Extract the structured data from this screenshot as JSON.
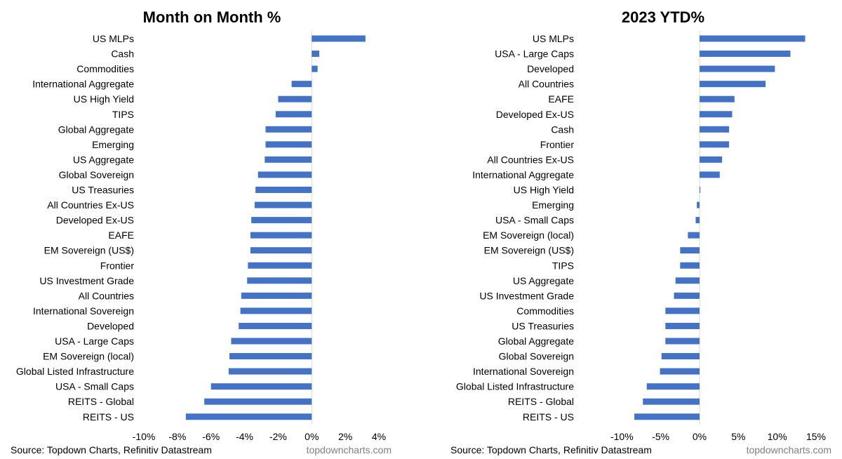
{
  "chart_data": [
    {
      "type": "bar",
      "orientation": "horizontal",
      "title": "Month on Month %",
      "xlabel": "",
      "ylabel": "",
      "xlim": [
        -10,
        4
      ],
      "x_ticks": [
        "-10%",
        "-8%",
        "-6%",
        "-4%",
        "-2%",
        "0%",
        "2%",
        "4%"
      ],
      "grid": false,
      "bar_color": "#4472C4",
      "categories": [
        "US MLPs",
        "Cash",
        "Commodities",
        "International Aggregate",
        "US High Yield",
        "TIPS",
        "Global Aggregate",
        "Emerging",
        "US Aggregate",
        "Global Sovereign",
        "US Treasuries",
        "All Countries Ex-US",
        "Developed Ex-US",
        "EAFE",
        "EM Sovereign (US$)",
        "Frontier",
        "US Investment Grade",
        "All Countries",
        "International Sovereign",
        "Developed",
        "USA - Large Caps",
        "EM Sovereign (local)",
        "Global Listed Infrastructure",
        "USA - Small Caps",
        "REITS - Global",
        "REITS - US"
      ],
      "values": [
        3.2,
        0.45,
        0.35,
        -1.2,
        -2.0,
        -2.15,
        -2.75,
        -2.75,
        -2.8,
        -3.2,
        -3.35,
        -3.4,
        -3.6,
        -3.65,
        -3.65,
        -3.8,
        -3.85,
        -4.2,
        -4.25,
        -4.35,
        -4.8,
        -4.9,
        -4.95,
        -6.0,
        -6.4,
        -7.5
      ]
    },
    {
      "type": "bar",
      "orientation": "horizontal",
      "title": "2023 YTD%",
      "xlabel": "",
      "ylabel": "",
      "xlim": [
        -15,
        15
      ],
      "x_ticks": [
        "-10%",
        "-5%",
        "0%",
        "5%",
        "10%",
        "15%"
      ],
      "grid": false,
      "bar_color": "#4472C4",
      "categories": [
        "US MLPs",
        "USA - Large Caps",
        "Developed",
        "All Countries",
        "EAFE",
        "Developed Ex-US",
        "Cash",
        "Frontier",
        "All Countries Ex-US",
        "International Aggregate",
        "US High Yield",
        "Emerging",
        "USA - Small Caps",
        "EM Sovereign (local)",
        "EM Sovereign (US$)",
        "TIPS",
        "US Aggregate",
        "US Investment Grade",
        "Commodities",
        "US Treasuries",
        "Global Aggregate",
        "Global Sovereign",
        "International Sovereign",
        "Global Listed Infrastructure",
        "REITS - Global",
        "REITS - US"
      ],
      "values": [
        13.6,
        11.7,
        9.7,
        8.5,
        4.5,
        4.2,
        3.8,
        3.8,
        2.9,
        2.6,
        0.1,
        -0.35,
        -0.5,
        -1.5,
        -2.5,
        -2.5,
        -3.1,
        -3.3,
        -4.4,
        -4.4,
        -4.4,
        -4.9,
        -5.1,
        -6.8,
        -7.3,
        -8.4
      ]
    }
  ],
  "footer": {
    "source_left": "Source: Topdown Charts, Refinitiv Datastream",
    "watermark_left": "topdowncharts.com",
    "source_right": "Source: Topdown Charts, Refinitiv Datastream",
    "watermark_right": "topdowncharts.com"
  }
}
